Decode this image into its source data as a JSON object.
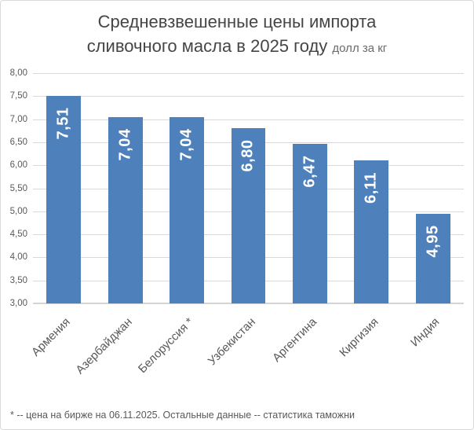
{
  "chart_data": {
    "type": "bar",
    "title_line1": "Средневзвешенные цены импорта",
    "title_line2": "сливочного масла в 2025 году",
    "title_units": "долл за кг",
    "categories": [
      "Армения",
      "Азербайджан",
      "Белоруссия *",
      "Узбекистан",
      "Аргентина",
      "Киргизия",
      "Индия"
    ],
    "values": [
      7.51,
      7.04,
      7.04,
      6.8,
      6.47,
      6.11,
      4.95
    ],
    "value_labels": [
      "7,51",
      "7,04",
      "7,04",
      "6,80",
      "6,47",
      "6,11",
      "4,95"
    ],
    "xlabel": "",
    "ylabel": "",
    "ylim": [
      3.0,
      8.0
    ],
    "ytick_step": 0.5,
    "ytick_labels": [
      "3,00",
      "3,50",
      "4,00",
      "4,50",
      "5,00",
      "5,50",
      "6,00",
      "6,50",
      "7,00",
      "7,50",
      "8,00"
    ],
    "grid": true,
    "legend": "none",
    "bar_color": "#4e80bc",
    "value_label_color": "#ffffff",
    "footnote": "* -- цена на бирже на 06.11.2025. Остальные данные -- статистика таможни"
  }
}
